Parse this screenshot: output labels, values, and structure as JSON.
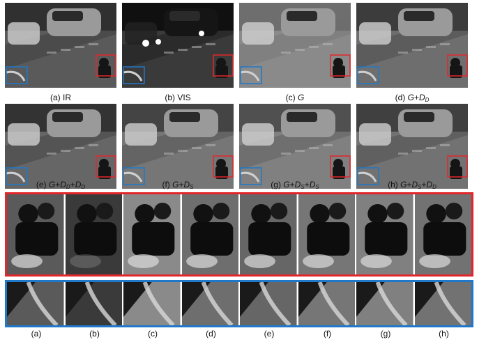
{
  "panels": [
    {
      "id": "a",
      "label": "(a) IR",
      "tone": "#303030",
      "road": "#5a5a5a"
    },
    {
      "id": "b",
      "label": "(b) VIS",
      "tone": "#101010",
      "road": "#3a3a3a"
    },
    {
      "id": "c",
      "label": "(c) G",
      "tone": "#6e6e6e",
      "road": "#8a8a8a"
    },
    {
      "id": "d",
      "label": "(d) G+DD",
      "tone": "#3c3c3c",
      "road": "#6e6e6e"
    },
    {
      "id": "e",
      "label": "(e) G+DD+DD",
      "tone": "#333333",
      "road": "#666666"
    },
    {
      "id": "f",
      "label": "(f) G+DS",
      "tone": "#444444",
      "road": "#767676"
    },
    {
      "id": "g",
      "label": "(g) G+DS+DS",
      "tone": "#505050",
      "road": "#808080"
    },
    {
      "id": "h",
      "label": "(h) G+DS+DD",
      "tone": "#404040",
      "road": "#727272"
    }
  ],
  "crop_labels": [
    "(a)",
    "(b)",
    "(c)",
    "(d)",
    "(e)",
    "(f)",
    "(g)",
    "(h)"
  ],
  "colors": {
    "red_box": "#e3262b",
    "blue_box": "#1f78c8"
  }
}
